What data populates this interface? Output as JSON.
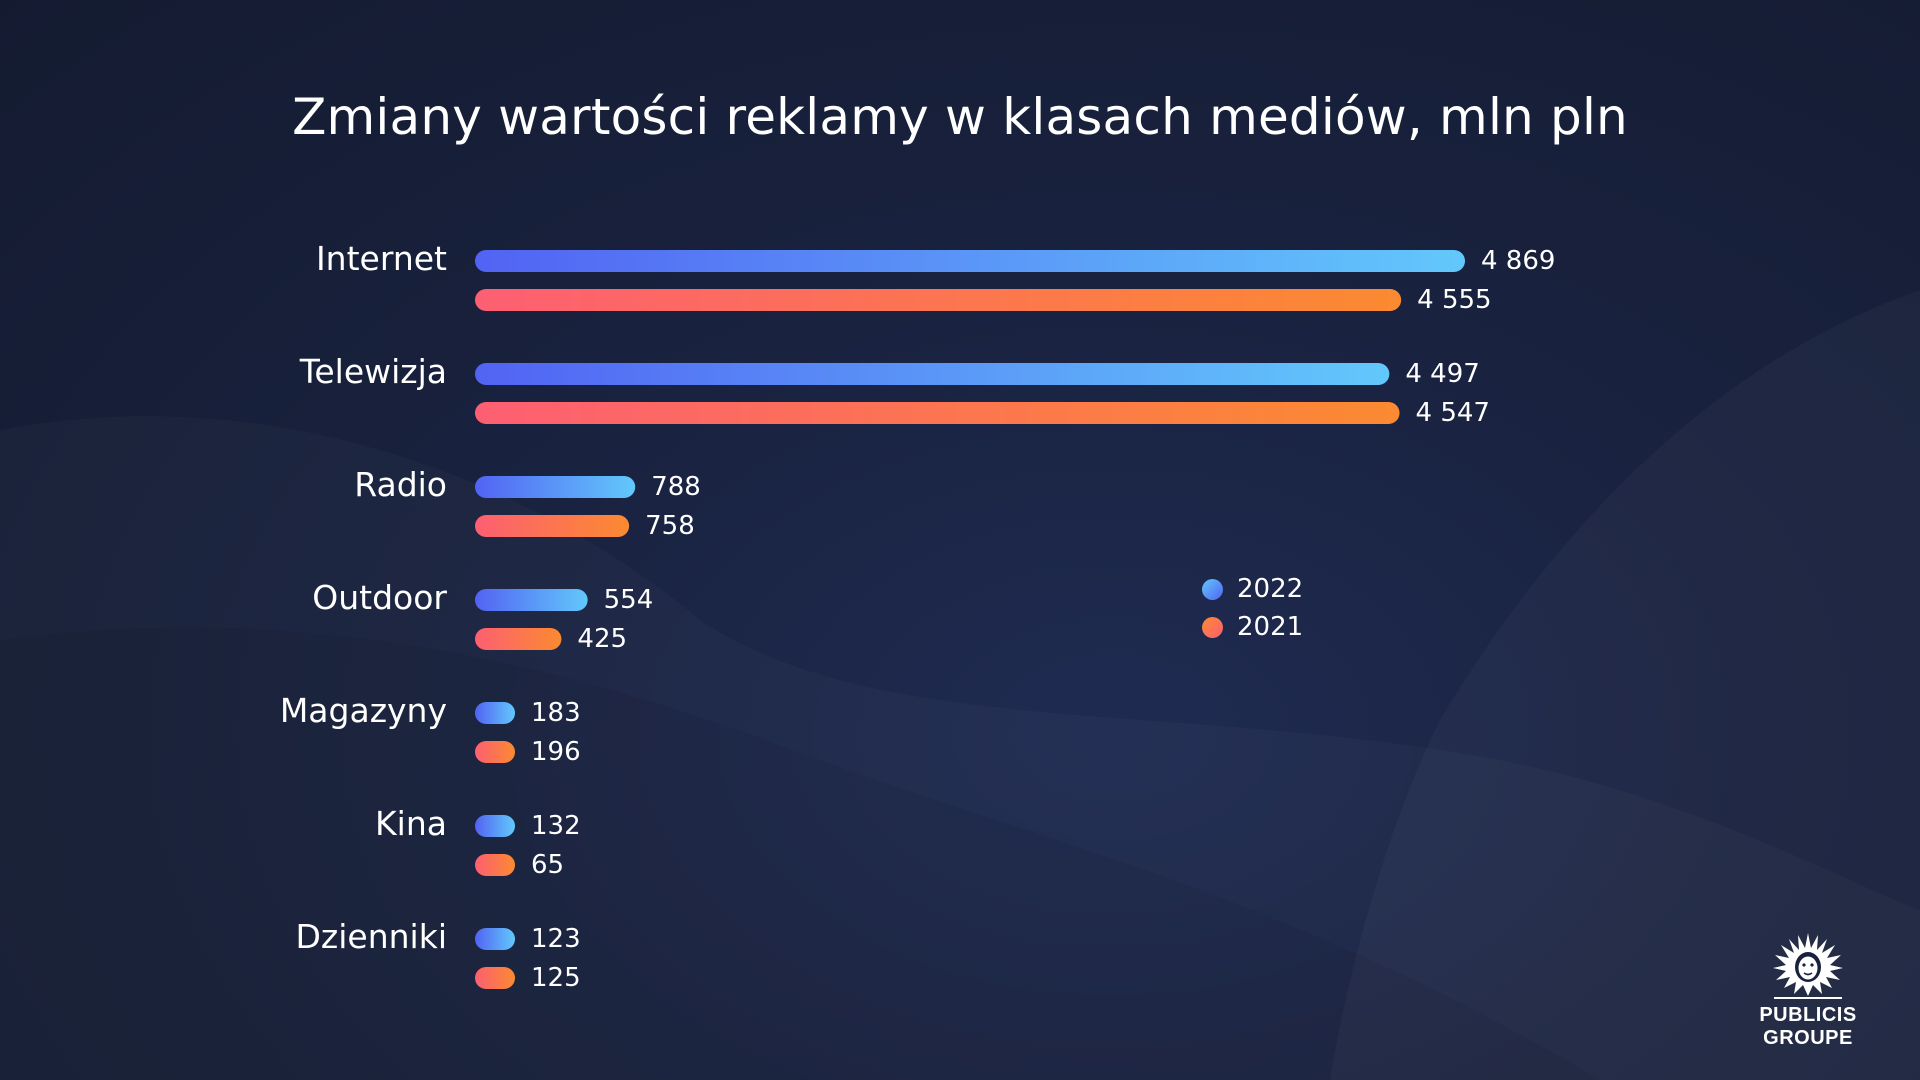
{
  "colors": {
    "series_2022_start": "#5263f3",
    "series_2022_end": "#62c8fb",
    "series_2021_start": "#fd5f72",
    "series_2021_end": "#fb8a31",
    "label": "#ffffff"
  },
  "chart_data": {
    "type": "bar",
    "orientation": "horizontal",
    "title": "Zmiany wartości reklamy w klasach mediów, mln pln",
    "categories": [
      "Internet",
      "Telewizja",
      "Radio",
      "Outdoor",
      "Magazyny",
      "Kina",
      "Dzienniki"
    ],
    "series": [
      {
        "name": "2022",
        "values": [
          4869,
          4497,
          788,
          554,
          183,
          132,
          123
        ],
        "labels": [
          "4 869",
          "4 497",
          "788",
          "554",
          "183",
          "132",
          "123"
        ]
      },
      {
        "name": "2021",
        "values": [
          4555,
          4547,
          758,
          425,
          196,
          65,
          125
        ],
        "labels": [
          "4 555",
          "4 547",
          "758",
          "425",
          "196",
          "65",
          "125"
        ]
      }
    ],
    "legend_position": "right",
    "grid": false
  },
  "logo": {
    "line1": "PUBLICIS",
    "line2": "GROUPE",
    "icon": "lion-head-icon"
  }
}
